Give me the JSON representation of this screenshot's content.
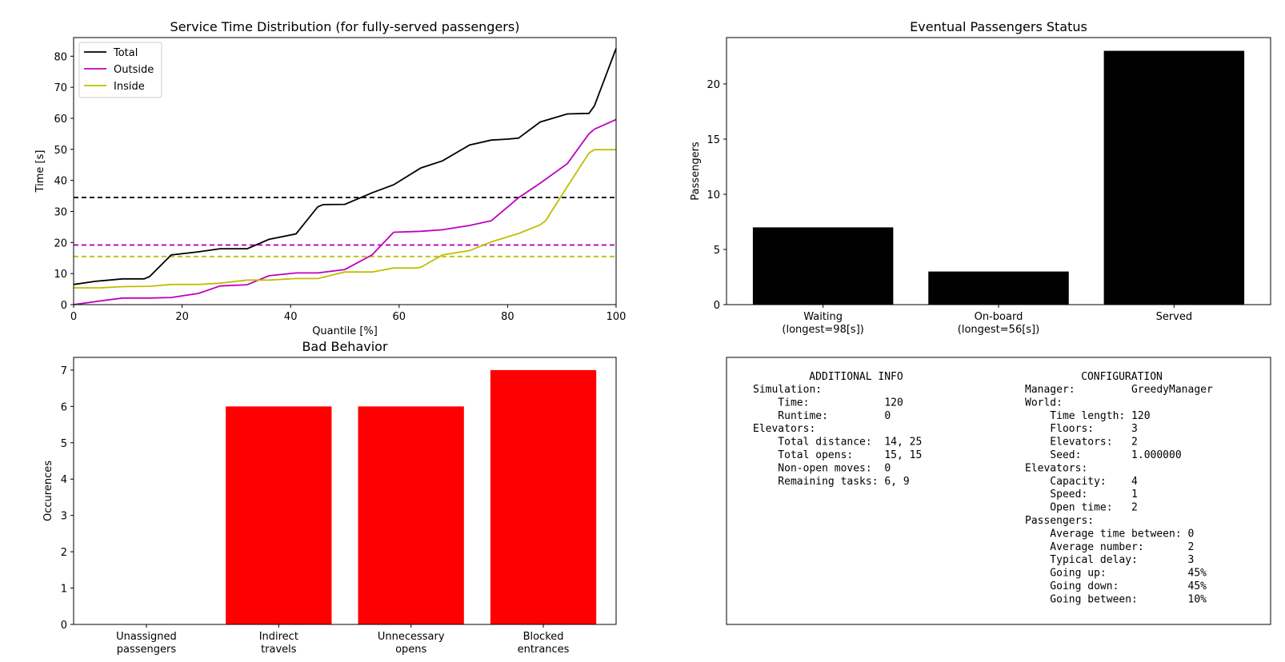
{
  "chart_data": [
    {
      "type": "line",
      "title": "Service Time Distribution (for fully-served passengers)",
      "xlabel": "Quantile [%]",
      "ylabel": "Time [s]",
      "xlim": [
        0,
        100
      ],
      "ylim": [
        0,
        86
      ],
      "xticks": [
        "0",
        "20",
        "40",
        "60",
        "80",
        "100"
      ],
      "yticks": [
        "0",
        "10",
        "20",
        "30",
        "40",
        "50",
        "60",
        "70",
        "80"
      ],
      "legend": {
        "placement": "top-left",
        "entries": [
          "Total",
          "Outside",
          "Inside"
        ]
      },
      "grid": false,
      "series": [
        {
          "name": "Total",
          "color": "#000000",
          "mean": 34.5,
          "points": [
            [
              0,
              6.5
            ],
            [
              4,
              7.5
            ],
            [
              9,
              8.3
            ],
            [
              13,
              8.3
            ],
            [
              14,
              9
            ],
            [
              18,
              16
            ],
            [
              23,
              17
            ],
            [
              27,
              18
            ],
            [
              32,
              18
            ],
            [
              36,
              21
            ],
            [
              41,
              22.8
            ],
            [
              45,
              31.5
            ],
            [
              46,
              32.2
            ],
            [
              50,
              32.3
            ],
            [
              55,
              36
            ],
            [
              59,
              38.6
            ],
            [
              64,
              44
            ],
            [
              68,
              46.3
            ],
            [
              73,
              51.4
            ],
            [
              77,
              53
            ],
            [
              80,
              53.3
            ],
            [
              82,
              53.6
            ],
            [
              86,
              58.8
            ],
            [
              91,
              61.4
            ],
            [
              95,
              61.6
            ],
            [
              96,
              64
            ],
            [
              100,
              82.5
            ]
          ]
        },
        {
          "name": "Outside",
          "color": "#bf00bf",
          "mean": 19.2,
          "points": [
            [
              0,
              0
            ],
            [
              5,
              1.2
            ],
            [
              9,
              2.1
            ],
            [
              14,
              2.1
            ],
            [
              18,
              2.3
            ],
            [
              23,
              3.6
            ],
            [
              27,
              6
            ],
            [
              32,
              6.4
            ],
            [
              36,
              9.3
            ],
            [
              41,
              10.2
            ],
            [
              45,
              10.2
            ],
            [
              50,
              11.3
            ],
            [
              55,
              16
            ],
            [
              59,
              23.3
            ],
            [
              64,
              23.6
            ],
            [
              68,
              24.1
            ],
            [
              73,
              25.5
            ],
            [
              77,
              27
            ],
            [
              82,
              34.4
            ],
            [
              86,
              39.1
            ],
            [
              91,
              45.4
            ],
            [
              95,
              55
            ],
            [
              96,
              56.5
            ],
            [
              100,
              59.6
            ]
          ]
        },
        {
          "name": "Inside",
          "color": "#bfbf00",
          "mean": 15.5,
          "points": [
            [
              0,
              5.4
            ],
            [
              5,
              5.4
            ],
            [
              9,
              5.8
            ],
            [
              14,
              5.9
            ],
            [
              18,
              6.5
            ],
            [
              23,
              6.5
            ],
            [
              27,
              6.9
            ],
            [
              32,
              7.9
            ],
            [
              36,
              7.9
            ],
            [
              41,
              8.4
            ],
            [
              45,
              8.4
            ],
            [
              50,
              10.5
            ],
            [
              55,
              10.5
            ],
            [
              59,
              11.8
            ],
            [
              63,
              11.8
            ],
            [
              64,
              12
            ],
            [
              68,
              16
            ],
            [
              73,
              17.4
            ],
            [
              77,
              20.2
            ],
            [
              82,
              22.9
            ],
            [
              86,
              25.7
            ],
            [
              87,
              27
            ],
            [
              91,
              38
            ],
            [
              95,
              48.8
            ],
            [
              96,
              49.9
            ],
            [
              100,
              49.9
            ]
          ]
        }
      ]
    },
    {
      "type": "bar",
      "title": "Eventual Passengers Status",
      "xlabel": "",
      "ylabel": "Passengers",
      "ylim": [
        0,
        24.2
      ],
      "yticks": [
        "0",
        "5",
        "10",
        "15",
        "20"
      ],
      "categories": [
        [
          "Waiting",
          "(longest=98[s])"
        ],
        [
          "On-board",
          "(longest=56[s])"
        ],
        [
          "Served"
        ]
      ],
      "values": [
        7,
        3,
        23
      ],
      "color": "#000000"
    },
    {
      "type": "bar",
      "title": "Bad Behavior",
      "xlabel": "",
      "ylabel": "Occurences",
      "ylim": [
        0,
        7.35
      ],
      "yticks": [
        "0",
        "1",
        "2",
        "3",
        "4",
        "5",
        "6",
        "7"
      ],
      "categories": [
        [
          "Unassigned",
          "passengers"
        ],
        [
          "Indirect",
          "travels"
        ],
        [
          "Unnecessary",
          "opens"
        ],
        [
          "Blocked",
          "entrances"
        ]
      ],
      "values": [
        0,
        6,
        6,
        7
      ],
      "color": "#ff0000"
    }
  ],
  "info_panel": {
    "additional_title": "ADDITIONAL INFO",
    "additional_lines": [
      "Simulation:",
      "    Time:            120",
      "    Runtime:         0",
      "Elevators:",
      "    Total distance:  14, 25",
      "    Total opens:     15, 15",
      "    Non-open moves:  0",
      "    Remaining tasks: 6, 9"
    ],
    "config_title": "CONFIGURATION",
    "config_lines": [
      "Manager:         GreedyManager",
      "World:",
      "    Time length: 120",
      "    Floors:      3",
      "    Elevators:   2",
      "    Seed:        1.000000",
      "Elevators:",
      "    Capacity:    4",
      "    Speed:       1",
      "    Open time:   2",
      "Passengers:",
      "    Average time between: 0",
      "    Average number:       2",
      "    Typical delay:        3",
      "    Going up:             45%",
      "    Going down:           45%",
      "    Going between:        10%"
    ]
  }
}
